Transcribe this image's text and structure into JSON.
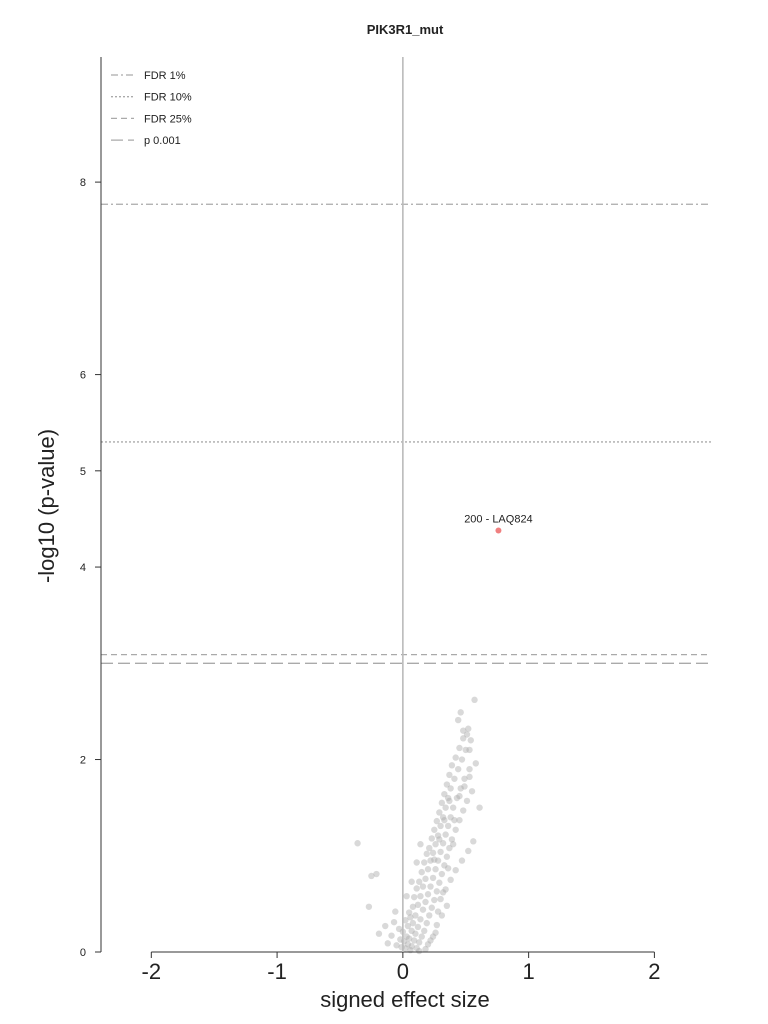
{
  "chart_data": {
    "type": "scatter",
    "title": "PIK3R1_mut",
    "xlabel": "signed effect size",
    "ylabel": "-log10 (p-value)",
    "xlim": [
      -2.4,
      2.45
    ],
    "ylim": [
      0,
      9.3
    ],
    "x_ticks": [
      -2,
      -1,
      0,
      1,
      2
    ],
    "x_tick_labels": [
      "-2",
      "-1",
      "0",
      "1",
      "2"
    ],
    "y_ticks": [
      0,
      2,
      4,
      5,
      6,
      8
    ],
    "y_tick_labels": [
      "0",
      "2",
      "4",
      "5",
      "6",
      "8"
    ],
    "grid": false,
    "zero_line": true,
    "legend_position": "top-left",
    "threshold_lines": [
      {
        "label": "FDR 1%",
        "style": "dashdot",
        "y": 7.77
      },
      {
        "label": "FDR 10%",
        "style": "dotted",
        "y": 5.3
      },
      {
        "label": "FDR 25%",
        "style": "dashed",
        "y": 3.09
      },
      {
        "label": "p 0.001",
        "style": "longdash",
        "y": 3.0
      }
    ],
    "highlighted_points": [
      {
        "x": 0.76,
        "y": 4.38,
        "label": "200 - LAQ824",
        "color": "#f08080"
      }
    ],
    "point_color": "#aaaaaa",
    "points": [
      [
        -0.36,
        1.13
      ],
      [
        -0.21,
        0.81
      ],
      [
        -0.25,
        0.79
      ],
      [
        -0.27,
        0.47
      ],
      [
        -0.14,
        0.27
      ],
      [
        -0.19,
        0.19
      ],
      [
        -0.12,
        0.09
      ],
      [
        -0.07,
        0.31
      ],
      [
        -0.09,
        0.17
      ],
      [
        -0.03,
        0.24
      ],
      [
        -0.05,
        0.07
      ],
      [
        -0.02,
        0.13
      ],
      [
        -0.01,
        0.05
      ],
      [
        0.0,
        0.21
      ],
      [
        0.01,
        0.11
      ],
      [
        0.02,
        0.33
      ],
      [
        0.02,
        0.04
      ],
      [
        0.03,
        0.16
      ],
      [
        0.04,
        0.27
      ],
      [
        0.04,
        0.08
      ],
      [
        0.05,
        0.41
      ],
      [
        0.05,
        0.14
      ],
      [
        0.06,
        0.02
      ],
      [
        0.06,
        0.36
      ],
      [
        0.07,
        0.22
      ],
      [
        0.07,
        0.06
      ],
      [
        0.08,
        0.47
      ],
      [
        0.08,
        0.3
      ],
      [
        0.09,
        0.12
      ],
      [
        0.09,
        0.57
      ],
      [
        0.1,
        0.19
      ],
      [
        0.1,
        0.38
      ],
      [
        0.11,
        0.04
      ],
      [
        0.11,
        0.66
      ],
      [
        0.12,
        0.26
      ],
      [
        0.12,
        0.49
      ],
      [
        0.13,
        0.1
      ],
      [
        0.13,
        0.73
      ],
      [
        0.14,
        0.34
      ],
      [
        0.14,
        0.58
      ],
      [
        0.15,
        0.16
      ],
      [
        0.15,
        0.83
      ],
      [
        0.16,
        0.44
      ],
      [
        0.16,
        0.68
      ],
      [
        0.17,
        0.22
      ],
      [
        0.17,
        0.93
      ],
      [
        0.18,
        0.52
      ],
      [
        0.18,
        0.76
      ],
      [
        0.19,
        0.3
      ],
      [
        0.19,
        1.02
      ],
      [
        0.2,
        0.6
      ],
      [
        0.2,
        0.86
      ],
      [
        0.21,
        0.38
      ],
      [
        0.21,
        1.08
      ],
      [
        0.22,
        0.68
      ],
      [
        0.22,
        0.95
      ],
      [
        0.23,
        0.46
      ],
      [
        0.23,
        1.18
      ],
      [
        0.24,
        0.77
      ],
      [
        0.24,
        1.03
      ],
      [
        0.25,
        0.54
      ],
      [
        0.25,
        1.27
      ],
      [
        0.26,
        0.86
      ],
      [
        0.26,
        1.12
      ],
      [
        0.27,
        0.63
      ],
      [
        0.27,
        1.36
      ],
      [
        0.28,
        0.95
      ],
      [
        0.28,
        1.21
      ],
      [
        0.29,
        0.72
      ],
      [
        0.29,
        1.45
      ],
      [
        0.3,
        1.04
      ],
      [
        0.3,
        1.31
      ],
      [
        0.31,
        0.81
      ],
      [
        0.31,
        1.55
      ],
      [
        0.32,
        1.13
      ],
      [
        0.32,
        1.4
      ],
      [
        0.33,
        0.9
      ],
      [
        0.33,
        1.64
      ],
      [
        0.34,
        1.22
      ],
      [
        0.34,
        1.5
      ],
      [
        0.35,
        0.99
      ],
      [
        0.35,
        1.74
      ],
      [
        0.36,
        1.31
      ],
      [
        0.36,
        1.6
      ],
      [
        0.37,
        1.08
      ],
      [
        0.37,
        1.84
      ],
      [
        0.38,
        1.4
      ],
      [
        0.38,
        1.7
      ],
      [
        0.39,
        1.17
      ],
      [
        0.39,
        1.94
      ],
      [
        0.4,
        1.5
      ],
      [
        0.41,
        1.8
      ],
      [
        0.42,
        1.27
      ],
      [
        0.42,
        2.02
      ],
      [
        0.43,
        1.6
      ],
      [
        0.44,
        1.9
      ],
      [
        0.45,
        1.37
      ],
      [
        0.45,
        2.12
      ],
      [
        0.46,
        1.7
      ],
      [
        0.47,
        2.0
      ],
      [
        0.48,
        1.47
      ],
      [
        0.48,
        2.22
      ],
      [
        0.49,
        1.8
      ],
      [
        0.5,
        2.1
      ],
      [
        0.51,
        1.57
      ],
      [
        0.52,
        2.32
      ],
      [
        0.53,
        1.9
      ],
      [
        0.54,
        2.2
      ],
      [
        0.55,
        1.67
      ],
      [
        0.57,
        2.62
      ],
      [
        0.58,
        1.96
      ],
      [
        0.61,
        1.5
      ],
      [
        0.46,
        2.49
      ],
      [
        0.51,
        2.26
      ],
      [
        0.53,
        2.1
      ],
      [
        0.44,
        2.41
      ],
      [
        0.48,
        2.3
      ],
      [
        0.27,
        0.28
      ],
      [
        0.31,
        0.38
      ],
      [
        0.35,
        0.48
      ],
      [
        0.22,
        0.12
      ],
      [
        0.26,
        0.2
      ],
      [
        0.3,
        0.55
      ],
      [
        0.34,
        0.65
      ],
      [
        0.38,
        0.75
      ],
      [
        0.42,
        0.85
      ],
      [
        0.47,
        0.95
      ],
      [
        0.52,
        1.05
      ],
      [
        0.56,
        1.15
      ],
      [
        0.11,
        0.93
      ],
      [
        0.14,
        1.12
      ],
      [
        0.07,
        0.73
      ],
      [
        0.03,
        0.58
      ],
      [
        -0.06,
        0.42
      ],
      [
        0.2,
        0.08
      ],
      [
        0.24,
        0.16
      ],
      [
        0.18,
        0.03
      ],
      [
        0.13,
        0.01
      ],
      [
        0.28,
        0.42
      ],
      [
        0.32,
        0.62
      ],
      [
        0.36,
        0.87
      ],
      [
        0.4,
        1.12
      ],
      [
        0.25,
        0.96
      ],
      [
        0.29,
        1.17
      ],
      [
        0.33,
        1.37
      ],
      [
        0.37,
        1.57
      ],
      [
        0.41,
        1.37
      ],
      [
        0.45,
        1.62
      ],
      [
        0.49,
        1.72
      ],
      [
        0.53,
        1.82
      ]
    ]
  }
}
